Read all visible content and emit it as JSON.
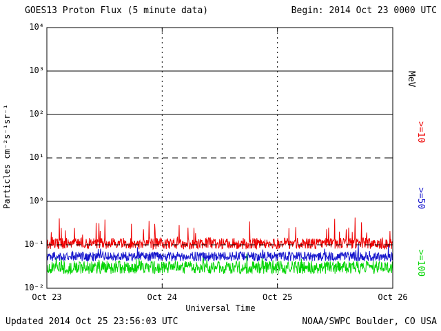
{
  "header": {
    "title": "GOES13 Proton Flux (5 minute data)",
    "begin_label": "Begin: 2014 Oct 23 0000 UTC"
  },
  "footer": {
    "updated": "Updated 2014 Oct 25 23:56:03 UTC",
    "source": "NOAA/SWPC Boulder, CO USA"
  },
  "chart_data": {
    "type": "line",
    "title": "GOES13 Proton Flux (5 minute data)",
    "xlabel": "Universal Time",
    "ylabel": "Particles cm⁻²s⁻¹sr⁻¹",
    "begin": "2014 Oct 23 0000 UTC",
    "x_ticks": [
      "Oct 23",
      "Oct 24",
      "Oct 25",
      "Oct 26"
    ],
    "duration_days": 3,
    "sample_interval_minutes": 5,
    "y_scale": "log10",
    "ylim": [
      0.01,
      10000
    ],
    "y_tick_labels": [
      "10⁴",
      "10³",
      "10²",
      "10¹",
      "10⁰",
      "10⁻¹",
      "10⁻²"
    ],
    "grid": {
      "solid_lines_at": [
        1000,
        100,
        1
      ],
      "dashed_lines_at": [
        10,
        0.1
      ],
      "dotted_verticals_at": [
        "Oct 24",
        "Oct 25"
      ]
    },
    "legend": {
      "position": "right",
      "unit_label": "MeV"
    },
    "series": [
      {
        "name": ">=10",
        "unit": "MeV",
        "color": "#ee0000",
        "approx_mean_flux": 0.12,
        "approx_min": 0.07,
        "approx_max": 0.5,
        "baseline_log": -0.97,
        "noise_log": 0.13,
        "spike_prob": 0.05,
        "spike_log_max": 0.5,
        "seed": 20141023
      },
      {
        "name": ">=50",
        "unit": "MeV",
        "color": "#1515cc",
        "approx_mean_flux": 0.055,
        "approx_min": 0.03,
        "approx_max": 0.11,
        "baseline_log": -1.27,
        "noise_log": 0.11,
        "spike_prob": 0.04,
        "spike_log_max": 0.22,
        "seed": 20141024
      },
      {
        "name": ">=100",
        "unit": "MeV",
        "color": "#00d400",
        "approx_mean_flux": 0.03,
        "approx_min": 0.015,
        "approx_max": 0.06,
        "baseline_log": -1.52,
        "noise_log": 0.15,
        "spike_prob": 0.04,
        "spike_log_max": 0.2,
        "seed": 20141025
      }
    ]
  }
}
